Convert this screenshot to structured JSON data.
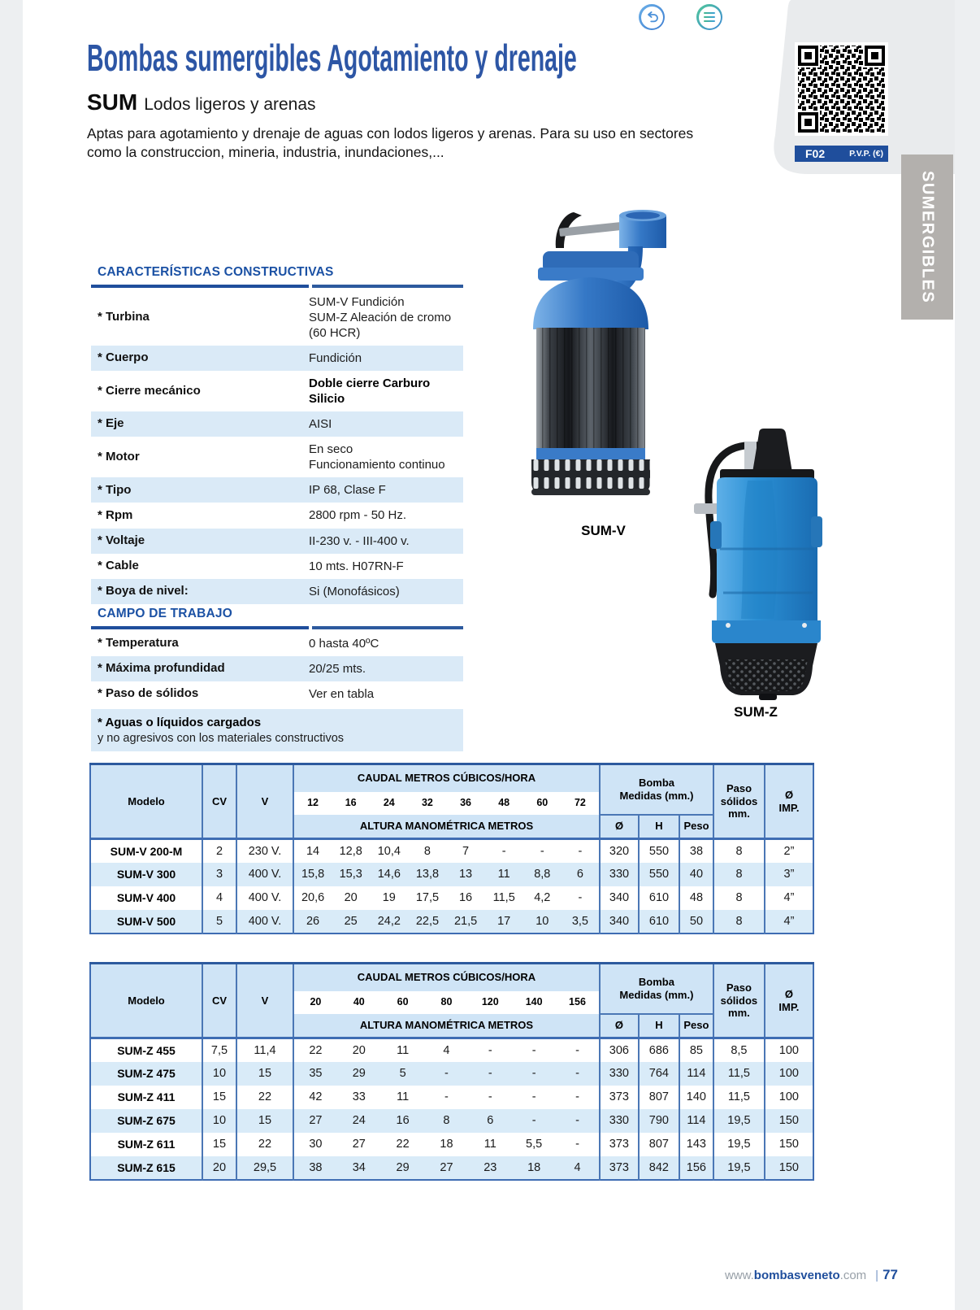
{
  "header": {
    "title": "Bombas sumergibles Agotamiento y drenaje",
    "model": "SUM",
    "model_subtitle": "Lodos ligeros y arenas",
    "description": "Aptas para agotamiento y drenaje de aguas con lodos ligeros y arenas. Para su uso en sectores como la construccion, mineria, industria, inundaciones,..."
  },
  "toolbar": {
    "back_icon": "curved-undo-arrow",
    "menu_icon": "hamburger-lines"
  },
  "qr_panel": {
    "code_label": "F02",
    "price_label": "P.V.P. (€)"
  },
  "side_tab": {
    "label": "SUMERGIBLES"
  },
  "characteristics": {
    "title": "CARACTERÍSTICAS CONSTRUCTIVAS",
    "rows": [
      {
        "label": "* Turbina",
        "value_lines": [
          "SUM-V Fundición",
          "SUM-Z Aleación de cromo (60 HCR)"
        ]
      },
      {
        "label": "* Cuerpo",
        "value_lines": [
          "Fundición"
        ]
      },
      {
        "label": "* Cierre mecánico",
        "value_lines": [
          "Doble cierre Carburo Silicio"
        ],
        "bold": true
      },
      {
        "label": "* Eje",
        "value_lines": [
          "AISI"
        ]
      },
      {
        "label": "* Motor",
        "value_lines": [
          "En seco",
          "Funcionamiento continuo"
        ]
      },
      {
        "label": "* Tipo",
        "value_lines": [
          "IP 68, Clase F"
        ]
      },
      {
        "label": "* Rpm",
        "value_lines": [
          "2800 rpm - 50 Hz."
        ]
      },
      {
        "label": "* Voltaje",
        "value_lines": [
          "II-230 v. - III-400 v."
        ]
      },
      {
        "label": "* Cable",
        "value_lines": [
          "10 mts. H07RN-F"
        ]
      },
      {
        "label": "* Boya de nivel:",
        "value_lines": [
          "Si (Monofásicos)"
        ]
      }
    ]
  },
  "work_field": {
    "title": "CAMPO DE TRABAJO",
    "rows": [
      {
        "label": "* Temperatura",
        "value_lines": [
          "0 hasta 40ºC"
        ]
      },
      {
        "label": "* Máxima profundidad",
        "value_lines": [
          "20/25 mts."
        ]
      },
      {
        "label": "* Paso de sólidos",
        "value_lines": [
          "Ver en tabla"
        ]
      }
    ],
    "note_title": "* Aguas o líquidos cargados",
    "note_text": "y no agresivos con los materiales constructivos"
  },
  "pumps": [
    {
      "label": "SUM-V"
    },
    {
      "label": "SUM-Z"
    }
  ],
  "tables": [
    {
      "col_model": "Modelo",
      "col_cv": "CV",
      "col_v": "V",
      "caudal_header": "CAUDAL METROS CÚBICOS/HORA",
      "altura_header": "ALTURA MANOMÉTRICA METROS",
      "bomba_lines": [
        "Bomba",
        "Medidas (mm.)"
      ],
      "paso_lines": [
        "Paso",
        "sólidos",
        "mm."
      ],
      "imp_lines": [
        "Ø",
        "IMP."
      ],
      "col_diameter": "Ø",
      "col_height": "H",
      "col_weight": "Peso",
      "flows": [
        "12",
        "16",
        "24",
        "32",
        "36",
        "48",
        "60",
        "72"
      ],
      "rows": [
        {
          "model": "SUM-V 200-M",
          "cv": "2",
          "v": "230 V.",
          "heights": [
            "14",
            "12,8",
            "10,4",
            "8",
            "7",
            "-",
            "-",
            "-"
          ],
          "d": "320",
          "h": "550",
          "peso": "38",
          "paso": "8",
          "imp": "2”"
        },
        {
          "model": "SUM-V 300",
          "cv": "3",
          "v": "400 V.",
          "heights": [
            "15,8",
            "15,3",
            "14,6",
            "13,8",
            "13",
            "11",
            "8,8",
            "6"
          ],
          "d": "330",
          "h": "550",
          "peso": "40",
          "paso": "8",
          "imp": "3”"
        },
        {
          "model": "SUM-V 400",
          "cv": "4",
          "v": "400 V.",
          "heights": [
            "20,6",
            "20",
            "19",
            "17,5",
            "16",
            "11,5",
            "4,2",
            "-"
          ],
          "d": "340",
          "h": "610",
          "peso": "48",
          "paso": "8",
          "imp": "4”"
        },
        {
          "model": "SUM-V 500",
          "cv": "5",
          "v": "400 V.",
          "heights": [
            "26",
            "25",
            "24,2",
            "22,5",
            "21,5",
            "17",
            "10",
            "3,5"
          ],
          "d": "340",
          "h": "610",
          "peso": "50",
          "paso": "8",
          "imp": "4”"
        }
      ]
    },
    {
      "col_model": "Modelo",
      "col_cv": "CV",
      "col_v": "V",
      "caudal_header": "CAUDAL METROS CÚBICOS/HORA",
      "altura_header": "ALTURA MANOMÉTRICA METROS",
      "bomba_lines": [
        "Bomba",
        "Medidas (mm.)"
      ],
      "paso_lines": [
        "Paso",
        "sólidos",
        "mm."
      ],
      "imp_lines": [
        "Ø",
        "IMP."
      ],
      "col_diameter": "Ø",
      "col_height": "H",
      "col_weight": "Peso",
      "flows": [
        "20",
        "40",
        "60",
        "80",
        "120",
        "140",
        "156"
      ],
      "rows": [
        {
          "model": "SUM-Z 455",
          "cv": "7,5",
          "v": "11,4",
          "heights": [
            "22",
            "20",
            "11",
            "4",
            "-",
            "-",
            "-"
          ],
          "d": "306",
          "h": "686",
          "peso": "85",
          "paso": "8,5",
          "imp": "100"
        },
        {
          "model": "SUM-Z 475",
          "cv": "10",
          "v": "15",
          "heights": [
            "35",
            "29",
            "5",
            "-",
            "-",
            "-",
            "-"
          ],
          "d": "330",
          "h": "764",
          "peso": "114",
          "paso": "11,5",
          "imp": "100"
        },
        {
          "model": "SUM-Z 411",
          "cv": "15",
          "v": "22",
          "heights": [
            "42",
            "33",
            "11",
            "-",
            "-",
            "-",
            "-"
          ],
          "d": "373",
          "h": "807",
          "peso": "140",
          "paso": "11,5",
          "imp": "100"
        },
        {
          "model": "SUM-Z 675",
          "cv": "10",
          "v": "15",
          "heights": [
            "27",
            "24",
            "16",
            "8",
            "6",
            "-",
            "-"
          ],
          "d": "330",
          "h": "790",
          "peso": "114",
          "paso": "19,5",
          "imp": "150"
        },
        {
          "model": "SUM-Z 611",
          "cv": "15",
          "v": "22",
          "heights": [
            "30",
            "27",
            "22",
            "18",
            "11",
            "5,5",
            "-"
          ],
          "d": "373",
          "h": "807",
          "peso": "143",
          "paso": "19,5",
          "imp": "150"
        },
        {
          "model": "SUM-Z 615",
          "cv": "20",
          "v": "29,5",
          "heights": [
            "38",
            "34",
            "29",
            "27",
            "23",
            "18",
            "4"
          ],
          "d": "373",
          "h": "842",
          "peso": "156",
          "paso": "19,5",
          "imp": "150"
        }
      ]
    }
  ],
  "footer": {
    "url_prefix": "www.",
    "url_bold": "bombasveneto",
    "url_suffix": ".com",
    "separator": "|",
    "page_number": "77"
  },
  "colors": {
    "accent_blue": "#1f4e9c",
    "title_blue": "#2d56a5",
    "table_row_blue": "#d9ebf8",
    "header_cell_blue": "#cfe4f6",
    "border_blue": "#3f6db3",
    "tab_gray": "#b3b0ad"
  }
}
